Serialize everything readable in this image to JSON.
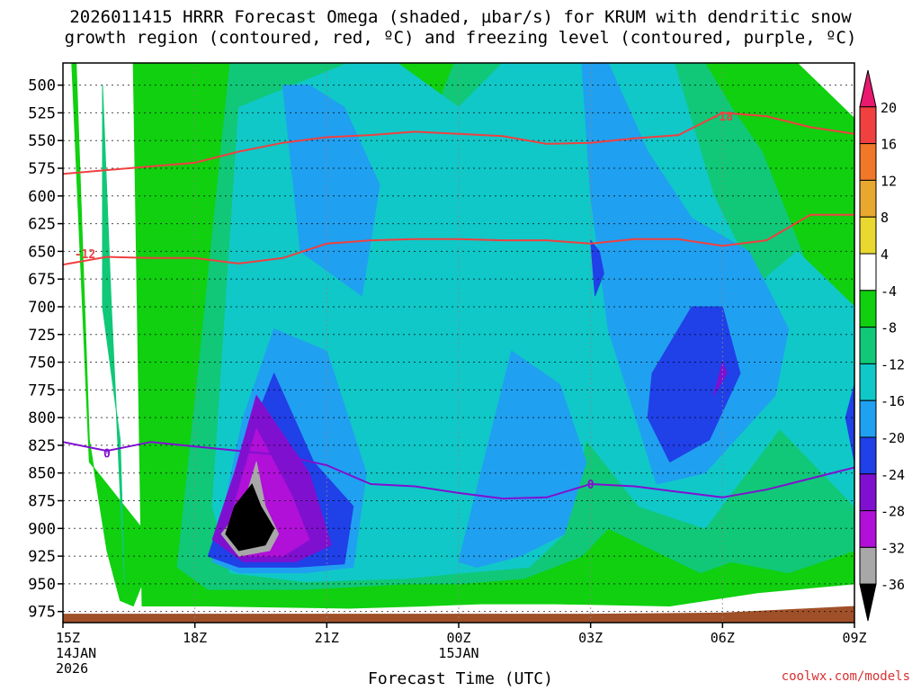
{
  "title": {
    "line1": "2026011415 HRRR Forecast Omega (shaded, µbar/s) for KRUM with dendritic snow",
    "line2": "growth region (contoured, red, ºC) and freezing level (contoured, purple, ºC)"
  },
  "credit": "coolwx.com/models",
  "chart_data": {
    "type": "heatmap",
    "xlabel": "Forecast Time (UTC)",
    "ylabel": "",
    "x_ticks": [
      {
        "hour": 0,
        "lines": [
          "15Z",
          "14JAN",
          "2026"
        ]
      },
      {
        "hour": 3,
        "lines": [
          "18Z"
        ]
      },
      {
        "hour": 6,
        "lines": [
          "21Z"
        ]
      },
      {
        "hour": 9,
        "lines": [
          "00Z",
          "15JAN"
        ]
      },
      {
        "hour": 12,
        "lines": [
          "03Z"
        ]
      },
      {
        "hour": 15,
        "lines": [
          "06Z"
        ]
      },
      {
        "hour": 18,
        "lines": [
          "09Z"
        ]
      }
    ],
    "xlim_hours": [
      0,
      18
    ],
    "y_ticks": [
      500,
      525,
      550,
      575,
      600,
      625,
      650,
      675,
      700,
      725,
      750,
      775,
      800,
      825,
      850,
      875,
      900,
      925,
      950,
      975
    ],
    "ylim_hpa": [
      480,
      985
    ],
    "colorbar": {
      "labels": [
        "20",
        "16",
        "12",
        "8",
        "4",
        "-4",
        "-8",
        "-12",
        "-16",
        "-20",
        "-24",
        "-28",
        "-32",
        "-36"
      ],
      "colors": [
        "#e8196e",
        "#f04040",
        "#f07828",
        "#e8a830",
        "#e8d830",
        "#ffffff",
        "#10d010",
        "#10c878",
        "#10c8c8",
        "#20a0f0",
        "#2040e8",
        "#8010d0",
        "#b010d8",
        "#a8a8a8",
        "#000000"
      ]
    },
    "omega_fields": [
      {
        "level": "-4",
        "color": "#10d010",
        "regions": [
          {
            "x": [
              1.8,
              2.3,
              3.3,
              6.5,
              8.2,
              9.5,
              11.2,
              13.8,
              15.8,
              18.0,
              18.0,
              16.7,
              13.6,
              10.7,
              8.2,
              4.8,
              1.6
            ],
            "y": [
              970,
              970,
              970,
              972,
              970,
              968,
              968,
              970,
              958,
              950,
              530,
              480,
              480,
              480,
              480,
              480,
              480
            ]
          },
          {
            "x": [
              0.2,
              0.6,
              1.8,
              1.8,
              1.6,
              1.3,
              1.0,
              0.6,
              0.3
            ],
            "y": [
              480,
              840,
              900,
              950,
              970,
              965,
              920,
              820,
              480
            ]
          }
        ]
      },
      {
        "level": "-8",
        "color": "#10c878",
        "regions": [
          {
            "x": [
              2.6,
              3.3,
              5.5,
              7.8,
              9.0,
              10.5,
              11.8,
              12.4,
              14.5,
              15.2,
              16.5,
              18.0,
              18.0,
              16.7,
              15.9,
              15.2,
              14.6,
              12.7,
              11.2,
              10.1,
              8.9,
              8.5,
              6.9,
              3.8,
              3.1
            ],
            "y": [
              935,
              955,
              955,
              950,
              950,
              945,
              925,
              900,
              940,
              930,
              940,
              920,
              770,
              640,
              560,
              520,
              480,
              480,
              480,
              480,
              480,
              520,
              480,
              480,
              750
            ]
          },
          {
            "x": [
              0.9,
              1.1,
              1.4,
              1.3,
              0.9
            ],
            "y": [
              500,
              700,
              950,
              820,
              700
            ]
          }
        ]
      },
      {
        "level": "-12",
        "color": "#10c8c8",
        "regions": [
          {
            "x": [
              3.4,
              3.8,
              5.5,
              7.8,
              9.1,
              10.6,
              11.4,
              11.9,
              13.1,
              14.6,
              16.3,
              18.0,
              18.0,
              16.7,
              15.8,
              14.8,
              13.9,
              12.1,
              11.2,
              10.0,
              9.0,
              7.6,
              6.5,
              4.0
            ],
            "y": [
              880,
              940,
              948,
              945,
              940,
              935,
              905,
              820,
              880,
              900,
              810,
              880,
              700,
              650,
              680,
              600,
              480,
              480,
              480,
              480,
              520,
              480,
              480,
              520
            ]
          }
        ]
      },
      {
        "level": "-16",
        "color": "#20a0f0",
        "regions": [
          {
            "x": [
              3.4,
              4.0,
              5.5,
              6.6,
              6.9,
              6.0,
              4.8,
              4.1
            ],
            "y": [
              930,
              940,
              940,
              935,
              850,
              740,
              720,
              800
            ]
          },
          {
            "x": [
              5.0,
              5.4,
              6.8,
              7.2,
              6.4,
              5.6
            ],
            "y": [
              500,
              650,
              690,
              590,
              520,
              500
            ]
          },
          {
            "x": [
              9.0,
              9.4,
              10.4,
              11.4,
              11.9,
              11.3,
              10.2
            ],
            "y": [
              930,
              935,
              925,
              905,
              840,
              770,
              740
            ]
          },
          {
            "x": [
              11.8,
              12.0,
              12.4,
              13.5,
              14.6,
              16.2,
              16.5,
              15.6,
              14.3,
              13.3,
              12.4
            ],
            "y": [
              480,
              600,
              720,
              860,
              850,
              780,
              720,
              650,
              620,
              560,
              480
            ]
          }
        ]
      },
      {
        "level": "-20",
        "color": "#2040e8",
        "regions": [
          {
            "x": [
              3.3,
              4.0,
              5.3,
              6.4,
              6.6,
              5.7,
              4.8,
              4.1
            ],
            "y": [
              925,
              935,
              935,
              932,
              880,
              840,
              760,
              830
            ]
          },
          {
            "x": [
              13.3,
              13.8,
              14.7,
              15.4,
              15.0,
              14.3,
              13.4
            ],
            "y": [
              800,
              840,
              820,
              760,
              700,
              700,
              760
            ]
          },
          {
            "x": [
              12.0,
              12.1,
              12.3,
              12.2
            ],
            "y": [
              640,
              690,
              670,
              650
            ]
          },
          {
            "x": [
              17.8,
              18.0,
              18.0
            ],
            "y": [
              800,
              840,
              770
            ]
          }
        ]
      },
      {
        "level": "-24",
        "color": "#8010d0",
        "regions": [
          {
            "x": [
              3.4,
              4.1,
              5.3,
              6.1,
              5.6,
              4.4,
              3.9
            ],
            "y": [
              910,
              930,
              930,
              915,
              850,
              780,
              850
            ]
          },
          {
            "x": [
              14.8,
              15.0,
              15.1
            ],
            "y": [
              780,
              750,
              760
            ]
          }
        ]
      },
      {
        "level": "-28",
        "color": "#b010d8",
        "regions": [
          {
            "x": [
              3.7,
              4.0,
              5.0,
              5.6,
              5.2,
              4.4
            ],
            "y": [
              905,
              925,
              925,
              910,
              870,
              810
            ]
          }
        ]
      },
      {
        "level": "-32",
        "color": "#a8a8a8",
        "regions": [
          {
            "x": [
              3.6,
              4.0,
              4.7,
              4.9,
              4.6,
              4.4,
              4.1
            ],
            "y": [
              905,
              925,
              920,
              905,
              880,
              840,
              880
            ]
          }
        ]
      },
      {
        "level": "-36",
        "color": "#000000",
        "regions": [
          {
            "x": [
              3.7,
              4.0,
              4.6,
              4.8,
              4.5,
              4.3,
              3.9
            ],
            "y": [
              905,
              920,
              915,
              900,
              880,
              860,
              880
            ]
          }
        ]
      }
    ],
    "temperature_contours": [
      {
        "label": "-18",
        "color": "#f04040",
        "label_pos": [
          15.0,
          528
        ],
        "points": [
          [
            0,
            580
          ],
          [
            1.5,
            575
          ],
          [
            3,
            570
          ],
          [
            4,
            560
          ],
          [
            5,
            552
          ],
          [
            6,
            547
          ],
          [
            7,
            545
          ],
          [
            8,
            542
          ],
          [
            9,
            544
          ],
          [
            10,
            546
          ],
          [
            11,
            553
          ],
          [
            12,
            552
          ],
          [
            13,
            548
          ],
          [
            14,
            545
          ],
          [
            15,
            525
          ],
          [
            16,
            528
          ],
          [
            17,
            538
          ],
          [
            18,
            544
          ]
        ]
      },
      {
        "label": "-12",
        "color": "#f04040",
        "label_pos": [
          0.5,
          652
        ],
        "points": [
          [
            0,
            662
          ],
          [
            1,
            655
          ],
          [
            2,
            656
          ],
          [
            3,
            656
          ],
          [
            4,
            661
          ],
          [
            5,
            656
          ],
          [
            6,
            643
          ],
          [
            7,
            640
          ],
          [
            8,
            639
          ],
          [
            9,
            639
          ],
          [
            10,
            640
          ],
          [
            11,
            640
          ],
          [
            12,
            643
          ],
          [
            13,
            639
          ],
          [
            14,
            639
          ],
          [
            15,
            645
          ],
          [
            16,
            640
          ],
          [
            17,
            617
          ],
          [
            18,
            617
          ]
        ]
      }
    ],
    "freezing_contours": [
      {
        "label": "0",
        "color": "#8010d0",
        "label_pos": [
          [
            1.0,
            832
          ],
          [
            12.0,
            860
          ]
        ],
        "points": [
          [
            0,
            822
          ],
          [
            1,
            830
          ],
          [
            2,
            822
          ],
          [
            3,
            826
          ],
          [
            4,
            830
          ],
          [
            5,
            834
          ],
          [
            6,
            843
          ],
          [
            7,
            860
          ],
          [
            8,
            862
          ],
          [
            9,
            868
          ],
          [
            10,
            873
          ],
          [
            11,
            872
          ],
          [
            12,
            860
          ],
          [
            13,
            862
          ],
          [
            14,
            867
          ],
          [
            15,
            872
          ],
          [
            16,
            865
          ],
          [
            17,
            855
          ],
          [
            18,
            845
          ]
        ]
      }
    ],
    "terrain_color": "#a05028",
    "terrain_top_hpa": [
      [
        0,
        977
      ],
      [
        11,
        977
      ],
      [
        12,
        977
      ],
      [
        15,
        976
      ],
      [
        18,
        970
      ]
    ]
  }
}
